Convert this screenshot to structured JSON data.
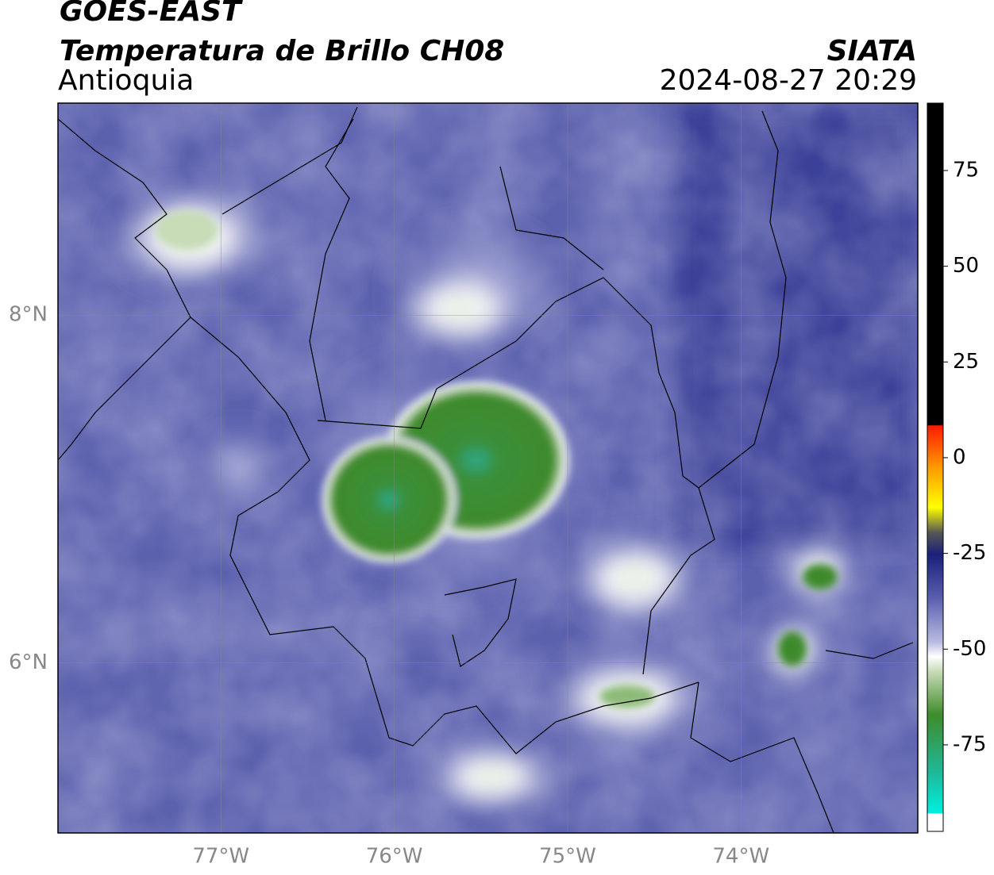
{
  "header": {
    "title": "GOES-EAST",
    "subtitle": "Temperatura de Brillo CH08",
    "region": "Antioquia",
    "source": "SIATA",
    "timestamp": "2024-08-27 20:29"
  },
  "map": {
    "lonlim": [
      -77.94,
      -72.98
    ],
    "latlim": [
      5.02,
      9.22
    ],
    "lon_ticks": [
      {
        "value": -77,
        "label": "77°W"
      },
      {
        "value": -76,
        "label": "76°W"
      },
      {
        "value": -75,
        "label": "75°W"
      },
      {
        "value": -74,
        "label": "74°W"
      }
    ],
    "lat_ticks": [
      {
        "value": 8,
        "label": "8°N"
      },
      {
        "value": 6,
        "label": "6°N"
      }
    ]
  },
  "colorbar": {
    "lim": [
      -97.6,
      92.6
    ],
    "ticks": [
      75,
      50,
      25,
      0,
      -25,
      -50,
      -75
    ]
  }
}
